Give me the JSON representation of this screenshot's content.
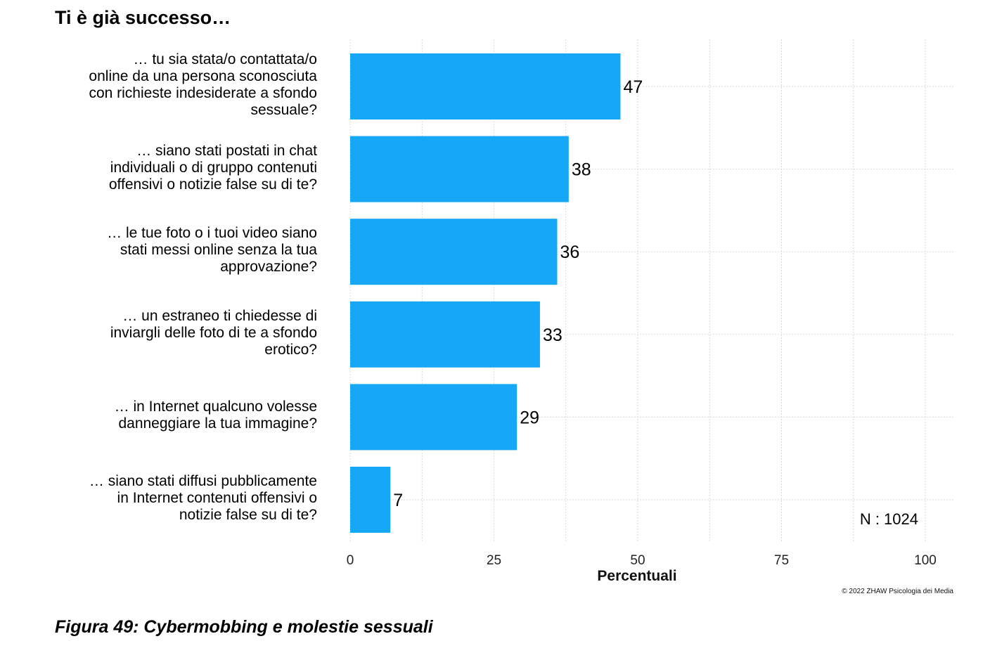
{
  "page": {
    "title": "Ti è già successo…",
    "caption": "Figura 49: Cybermobbing e molestie sessuali",
    "n_label": "N : 1024",
    "copyright": "© 2022 ZHAW Psicologia dei Media"
  },
  "chart_data": {
    "type": "bar",
    "orientation": "horizontal",
    "title": "Ti è già successo…",
    "xlabel": "Percentuali",
    "ylabel": "",
    "xlim": [
      0,
      100
    ],
    "xticks": [
      0,
      25,
      50,
      75,
      100
    ],
    "grid": true,
    "bar_color": "#16a8f7",
    "categories": [
      "… tu sia stata/o contattata/o\nonline da una persona sconosciuta\ncon richieste indesiderate a sfondo\nsessuale?",
      "… siano stati postati in chat\nindividuali o di gruppo contenuti\noffensivi o notizie false su di te?",
      "… le tue foto o i tuoi video siano\nstati messi online senza la tua\napprovazione?",
      "… un estraneo ti chiedesse di\ninviargli delle foto di te a sfondo\nerotico?",
      "… in Internet qualcuno volesse\ndanneggiare la tua immagine?",
      "… siano stati diffusi pubblicamente\nin Internet contenuti offensivi o\nnotizie false su di te?"
    ],
    "values": [
      47,
      38,
      36,
      33,
      29,
      7
    ]
  }
}
